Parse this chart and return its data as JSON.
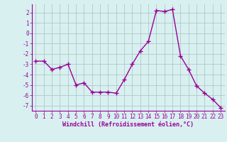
{
  "x": [
    0,
    1,
    2,
    3,
    4,
    5,
    6,
    7,
    8,
    9,
    10,
    11,
    12,
    13,
    14,
    15,
    16,
    17,
    18,
    19,
    20,
    21,
    22,
    23
  ],
  "y": [
    -2.7,
    -2.7,
    -3.5,
    -3.3,
    -3.0,
    -5.0,
    -4.8,
    -5.7,
    -5.7,
    -5.7,
    -5.8,
    -4.5,
    -3.0,
    -1.7,
    -0.8,
    2.2,
    2.1,
    2.3,
    -2.2,
    -3.5,
    -5.1,
    -5.8,
    -6.4,
    -7.2
  ],
  "line_color": "#990099",
  "marker": "+",
  "marker_size": 4,
  "linewidth": 1.0,
  "xlabel": "Windchill (Refroidissement éolien,°C)",
  "xlabel_fontsize": 6.0,
  "bg_color": "#d8f0f0",
  "grid_color": "#b0c8c8",
  "axes_color": "#990099",
  "tick_color": "#990099",
  "ylim": [
    -7.5,
    2.8
  ],
  "xlim": [
    -0.5,
    23.5
  ],
  "yticks": [
    -7,
    -6,
    -5,
    -4,
    -3,
    -2,
    -1,
    0,
    1,
    2
  ],
  "xticks": [
    0,
    1,
    2,
    3,
    4,
    5,
    6,
    7,
    8,
    9,
    10,
    11,
    12,
    13,
    14,
    15,
    16,
    17,
    18,
    19,
    20,
    21,
    22,
    23
  ],
  "tick_fontsize": 5.5
}
